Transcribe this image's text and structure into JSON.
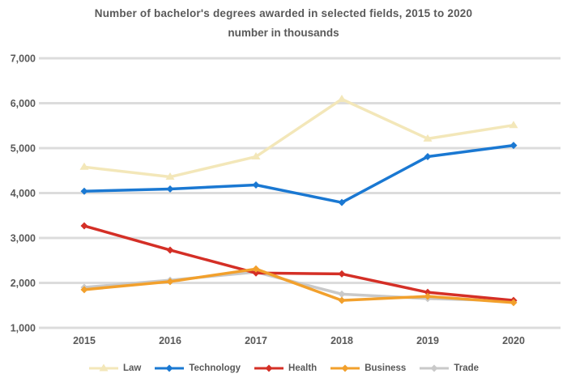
{
  "chart_data": {
    "type": "line",
    "title": "Number of bachelor's degrees awarded in selected fields, 2015 to 2020",
    "subtitle": "number in thousands",
    "x_labels": [
      "2015",
      "2016",
      "2017",
      "2018",
      "2019",
      "2020"
    ],
    "y_ticks": [
      "7,000",
      "6,000",
      "5,000",
      "4,000",
      "3,000",
      "2,000",
      "1,000"
    ],
    "ylim": [
      1000,
      7000
    ],
    "grid": true,
    "legend_position": "bottom",
    "text_color": "#595959",
    "grid_color": "#dcdcdc",
    "series": [
      {
        "name": "Law",
        "color": "#f3e7b9",
        "marker": "triangle",
        "z": 1,
        "values": [
          4580,
          4360,
          4810,
          6090,
          5210,
          5510
        ]
      },
      {
        "name": "Technology",
        "color": "#1a78d2",
        "marker": "diamond",
        "z": 2,
        "values": [
          4040,
          4090,
          4180,
          3790,
          4810,
          5060
        ]
      },
      {
        "name": "Health",
        "color": "#d42f26",
        "marker": "diamond",
        "z": 3,
        "values": [
          3270,
          2730,
          2220,
          2200,
          1790,
          1610
        ]
      },
      {
        "name": "Business",
        "color": "#f2a02c",
        "marker": "diamond",
        "z": 4,
        "values": [
          1850,
          2030,
          2310,
          1610,
          1700,
          1560
        ]
      },
      {
        "name": "Trade",
        "color": "#c9c9c9",
        "marker": "diamond",
        "z": 0,
        "values": [
          1900,
          2060,
          2240,
          1750,
          1650,
          1600
        ]
      }
    ]
  }
}
